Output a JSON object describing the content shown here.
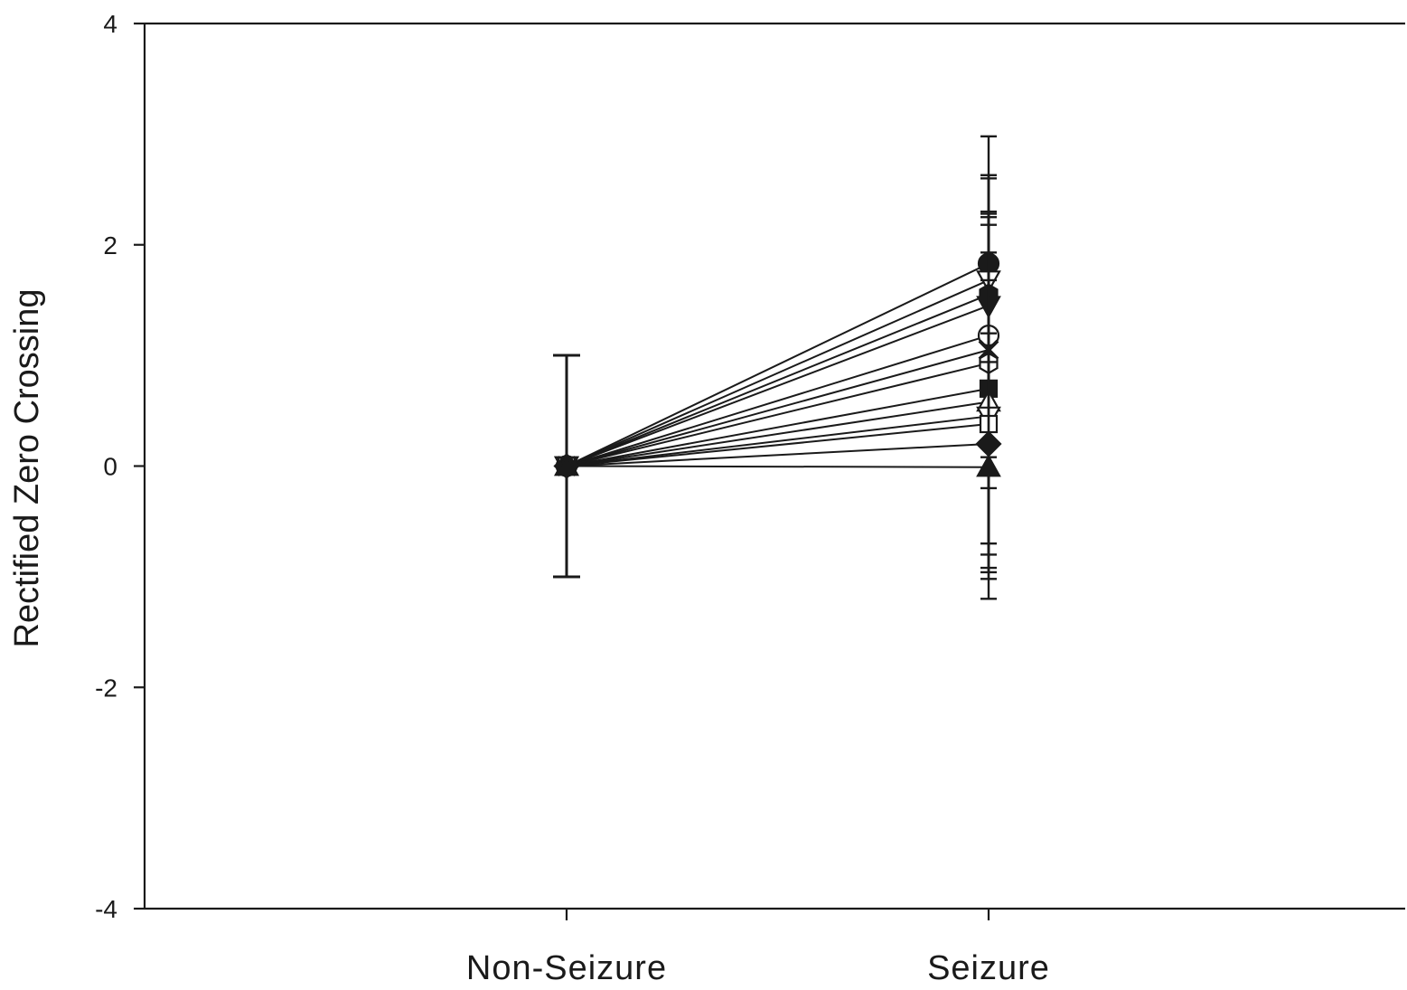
{
  "chart_data": {
    "type": "line",
    "title": "",
    "xlabel": "",
    "ylabel": "Rectified Zero Crossing",
    "categories": [
      "Non-Seizure",
      "Seizure"
    ],
    "ylim": [
      -4,
      4
    ],
    "yticks": [
      -4,
      -2,
      0,
      2,
      4
    ],
    "yticklabels": [
      "-4",
      "-2",
      "0",
      "2",
      "4"
    ],
    "grid": false,
    "legend": "none",
    "series": [
      {
        "marker": "filled-circle",
        "values": [
          0,
          1.83
        ],
        "error": [
          1.0,
          1.15
        ]
      },
      {
        "marker": "open-triangle-down",
        "values": [
          0,
          1.68
        ],
        "error": [
          1.0,
          0.95
        ]
      },
      {
        "marker": "filled-hexagon",
        "values": [
          0,
          1.55
        ],
        "error": [
          1.0,
          1.08
        ]
      },
      {
        "marker": "filled-triangle-down",
        "values": [
          0,
          1.45
        ],
        "error": [
          1.0,
          0.8
        ]
      },
      {
        "marker": "open-circle",
        "values": [
          0,
          1.18
        ],
        "error": [
          1.0,
          1.1
        ]
      },
      {
        "marker": "cross",
        "values": [
          0,
          1.05
        ],
        "error": [
          1.0,
          1.25
        ]
      },
      {
        "marker": "open-hexagon",
        "values": [
          0,
          0.93
        ],
        "error": [
          1.0,
          1.0
        ]
      },
      {
        "marker": "filled-square",
        "values": [
          0,
          0.7
        ],
        "error": [
          1.0,
          1.9
        ]
      },
      {
        "marker": "open-triangle-up",
        "values": [
          0,
          0.58
        ],
        "error": [
          1.0,
          1.6
        ]
      },
      {
        "marker": "open-triangle-down",
        "values": [
          0,
          0.45
        ],
        "error": [
          1.0,
          1.15
        ]
      },
      {
        "marker": "open-square",
        "values": [
          0,
          0.38
        ],
        "error": [
          1.0,
          1.3
        ]
      },
      {
        "marker": "filled-diamond",
        "values": [
          0,
          0.2
        ],
        "error": [
          1.0,
          1.0
        ]
      },
      {
        "marker": "filled-triangle-up",
        "values": [
          0,
          -0.01
        ],
        "error": [
          1.0,
          0.95
        ]
      }
    ]
  },
  "colors": {
    "ink": "#1a1a1a",
    "background": "#ffffff"
  }
}
